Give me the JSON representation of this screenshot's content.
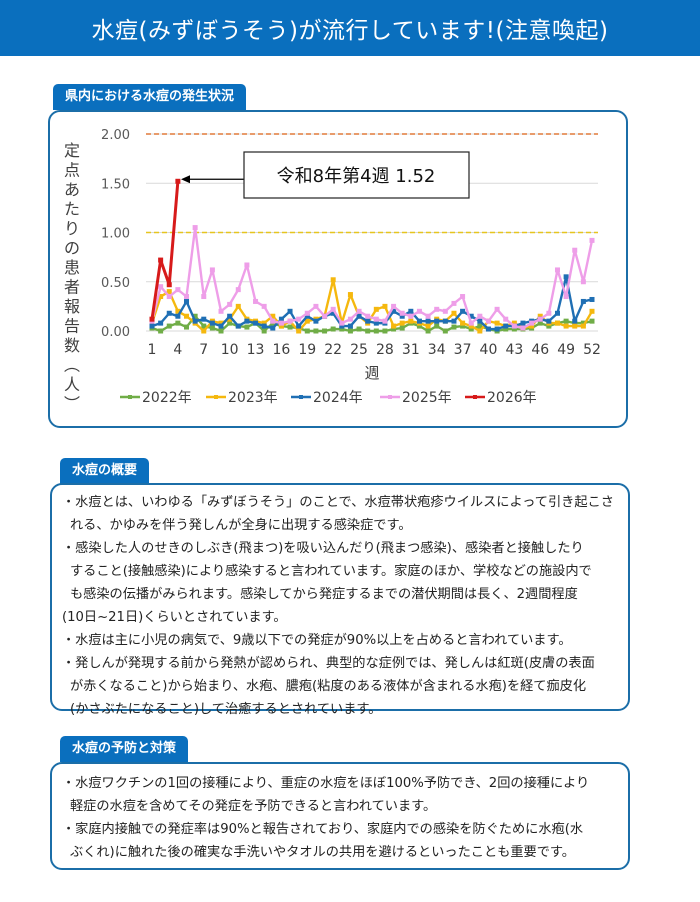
{
  "header": {
    "title": "水痘(みずぼうそう)が流行しています!(注意喚起)"
  },
  "colors": {
    "brand_blue": "#0a6fbe",
    "box_border": "#1b6ea8",
    "alert_line_red": "#e07a3a",
    "alert_line_yellow": "#e6c51f"
  },
  "chart_section": {
    "tab_label": "県内における水痘の発生状況",
    "annotation": "令和8年第4週 1.52"
  },
  "chart_data": {
    "type": "line",
    "title": "県内における水痘の発生状況",
    "xlabel": "週",
    "ylabel": "定点あたりの患者報告数(人)",
    "ylim": [
      0,
      2.0
    ],
    "yticks": [
      "0.00",
      "0.50",
      "1.00",
      "1.50",
      "2.00"
    ],
    "xticks": [
      "1",
      "4",
      "7",
      "10",
      "13",
      "16",
      "19",
      "22",
      "25",
      "28",
      "31",
      "34",
      "37",
      "40",
      "43",
      "46",
      "49",
      "52"
    ],
    "grid": true,
    "legend_position": "bottom",
    "reference_lines": [
      {
        "value": 2.0,
        "color": "#e07a3a",
        "style": "dashed"
      },
      {
        "value": 1.0,
        "color": "#e6c51f",
        "style": "dashed"
      }
    ],
    "annotation": {
      "text": "令和8年第4週 1.52",
      "x": 4,
      "y": 1.52
    },
    "x": [
      1,
      2,
      3,
      4,
      5,
      6,
      7,
      8,
      9,
      10,
      11,
      12,
      13,
      14,
      15,
      16,
      17,
      18,
      19,
      20,
      21,
      22,
      23,
      24,
      25,
      26,
      27,
      28,
      29,
      30,
      31,
      32,
      33,
      34,
      35,
      36,
      37,
      38,
      39,
      40,
      41,
      42,
      43,
      44,
      45,
      46,
      47,
      48,
      49,
      50,
      51,
      52
    ],
    "series": [
      {
        "name": "2022年",
        "color": "#70ad47",
        "values": [
          0.03,
          0.0,
          0.05,
          0.08,
          0.04,
          0.15,
          0.05,
          0.03,
          0.0,
          0.08,
          0.05,
          0.04,
          0.08,
          0.0,
          0.08,
          0.05,
          0.04,
          0.03,
          0.0,
          0.0,
          0.0,
          0.02,
          0.02,
          0.0,
          0.02,
          0.0,
          0.0,
          0.0,
          0.02,
          0.03,
          0.08,
          0.05,
          0.0,
          0.05,
          0.0,
          0.04,
          0.05,
          0.02,
          0.05,
          0.02,
          0.0,
          0.02,
          0.02,
          0.02,
          0.03,
          0.08,
          0.05,
          0.08,
          0.1,
          0.08,
          0.08,
          0.1
        ]
      },
      {
        "name": "2023年",
        "color": "#f5b80e",
        "values": [
          0.08,
          0.35,
          0.4,
          0.2,
          0.15,
          0.08,
          0.0,
          0.1,
          0.08,
          0.12,
          0.25,
          0.12,
          0.1,
          0.08,
          0.15,
          0.05,
          0.1,
          0.0,
          0.1,
          0.12,
          0.15,
          0.52,
          0.08,
          0.37,
          0.15,
          0.08,
          0.22,
          0.25,
          0.05,
          0.08,
          0.1,
          0.08,
          0.05,
          0.12,
          0.1,
          0.18,
          0.08,
          0.05,
          0.0,
          0.1,
          0.08,
          0.05,
          0.08,
          0.03,
          0.05,
          0.15,
          0.08,
          0.08,
          0.05,
          0.05,
          0.05,
          0.2
        ]
      },
      {
        "name": "2024年",
        "color": "#1f6fb4",
        "values": [
          0.05,
          0.08,
          0.18,
          0.15,
          0.3,
          0.1,
          0.12,
          0.08,
          0.05,
          0.15,
          0.05,
          0.1,
          0.08,
          0.05,
          0.03,
          0.12,
          0.2,
          0.05,
          0.15,
          0.1,
          0.15,
          0.18,
          0.05,
          0.05,
          0.15,
          0.1,
          0.08,
          0.08,
          0.2,
          0.15,
          0.2,
          0.1,
          0.1,
          0.1,
          0.1,
          0.1,
          0.2,
          0.15,
          0.1,
          0.02,
          0.02,
          0.05,
          0.05,
          0.08,
          0.1,
          0.12,
          0.1,
          0.18,
          0.55,
          0.1,
          0.3,
          0.32
        ]
      },
      {
        "name": "2025年",
        "color": "#ee9ee8",
        "values": [
          0.1,
          0.45,
          0.35,
          0.42,
          0.35,
          1.05,
          0.35,
          0.62,
          0.2,
          0.27,
          0.42,
          0.67,
          0.3,
          0.25,
          0.1,
          0.08,
          0.1,
          0.12,
          0.18,
          0.25,
          0.15,
          0.22,
          0.08,
          0.12,
          0.2,
          0.15,
          0.12,
          0.1,
          0.25,
          0.18,
          0.15,
          0.2,
          0.15,
          0.22,
          0.2,
          0.28,
          0.35,
          0.08,
          0.15,
          0.1,
          0.22,
          0.12,
          0.05,
          0.03,
          0.08,
          0.12,
          0.18,
          0.62,
          0.35,
          0.82,
          0.5,
          0.92
        ]
      },
      {
        "name": "2026年",
        "color": "#d71a1a",
        "values": [
          0.12,
          0.72,
          0.47,
          1.52
        ]
      }
    ]
  },
  "overview": {
    "tab_label": "水痘の概要",
    "lines": [
      "・水痘とは、いわゆる「みずぼうそう」のことで、水痘帯状疱疹ウイルスによって引き起こさ",
      "れる、かゆみを伴う発しんが全身に出現する感染症です。",
      "・感染した人のせきのしぶき(飛まつ)を吸い込んだり(飛まつ感染)、感染者と接触したり",
      "すること(接触感染)により感染すると言われています。家庭のほか、学校などの施設内で",
      "も感染の伝播がみられます。感染してから発症するまでの潜伏期間は長く、2週間程度",
      "(10日~21日)くらいとされています。",
      "・水痘は主に小児の病気で、9歳以下での発症が90%以上を占めると言われています。",
      "・発しんが発現する前から発熱が認められ、典型的な症例では、発しんは紅斑(皮膚の表面",
      "が赤くなること)から始まり、水疱、膿疱(粘度のある液体が含まれる水疱)を経て痂皮化",
      "(かさぶたになること)して治癒するとされています。"
    ]
  },
  "prevention": {
    "tab_label": "水痘の予防と対策",
    "lines": [
      "・水痘ワクチンの1回の接種により、重症の水痘をほぼ100%予防でき、2回の接種により",
      "軽症の水痘を含めてその発症を予防できると言われています。",
      "・家庭内接触での発症率は90%と報告されており、家庭内での感染を防ぐために水疱(水",
      "ぶくれ)に触れた後の確実な手洗いやタオルの共用を避けるといったことも重要です。"
    ]
  }
}
